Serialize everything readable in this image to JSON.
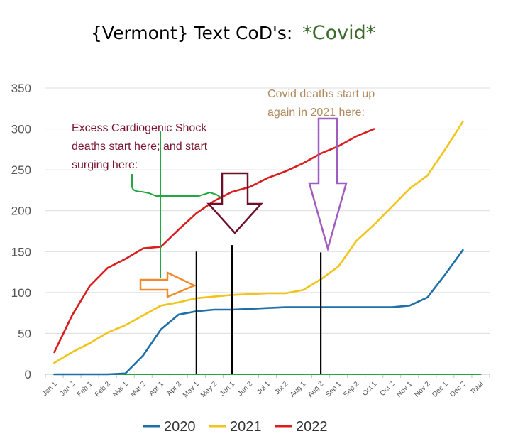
{
  "title": {
    "prefix": "{Vermont}  Text CoD's:",
    "accent": "*Covid*",
    "accent_color": "#3b6b2a"
  },
  "chart_data": {
    "type": "line",
    "categories": [
      "Jan 1",
      "Jan 2",
      "Feb 1",
      "Feb 2",
      "Mar 1",
      "Mar 2",
      "Apr 1",
      "Apr 2",
      "May 1",
      "May 2",
      "Jun 1",
      "Jun 2",
      "Jul 1",
      "Jul 2",
      "Aug 1",
      "Aug 2",
      "Sep 1",
      "Sep 2",
      "Oct 1",
      "Oct 2",
      "Nov 1",
      "Nov 2",
      "Dec 1",
      "Dec 2",
      "Total"
    ],
    "ylim": [
      0,
      350
    ],
    "yticks": [
      0,
      50,
      100,
      150,
      200,
      250,
      300,
      350
    ],
    "grid": true,
    "legend_position": "bottom",
    "series": [
      {
        "name": "2020",
        "color": "#1f6fa8",
        "values": [
          0,
          0,
          0,
          0,
          1,
          23,
          55,
          73,
          77,
          79,
          79,
          80,
          81,
          82,
          82,
          82,
          82,
          82,
          82,
          82,
          84,
          94,
          122,
          152,
          null
        ]
      },
      {
        "name": "2021",
        "color": "#f2c318",
        "values": [
          14,
          27,
          38,
          51,
          60,
          72,
          84,
          88,
          93,
          95,
          97,
          98,
          99,
          99,
          103,
          116,
          132,
          163,
          183,
          205,
          227,
          243,
          275,
          309,
          null
        ]
      },
      {
        "name": "2022",
        "color": "#d81e1e",
        "values": [
          27,
          72,
          108,
          130,
          141,
          154,
          156,
          177,
          197,
          212,
          223,
          229,
          240,
          248,
          258,
          270,
          279,
          291,
          300,
          null,
          null,
          null,
          null,
          null,
          null
        ]
      },
      {
        "name": "",
        "color": "#22a840",
        "show_in_legend": false,
        "values": [
          0,
          0,
          0,
          0,
          0,
          0,
          0,
          0,
          0,
          0,
          0,
          0,
          0,
          0,
          0,
          0,
          0,
          0,
          0,
          0,
          0,
          0,
          0,
          0,
          0
        ]
      }
    ],
    "annotations": [
      {
        "lines": [
          "Excess Cardiogenic Shock",
          "deaths start here; and start",
          "surging here:"
        ],
        "color": "#7a1530"
      },
      {
        "lines": [
          "Covid deaths start up",
          "again in 2021 here:"
        ],
        "color": "#b08a5e"
      }
    ],
    "markers": [
      {
        "type": "vline",
        "at_index": 8.5,
        "y_top": 150,
        "color": "#000000"
      },
      {
        "type": "vline",
        "at_index": 10.5,
        "y_top": 158,
        "color": "#000000"
      },
      {
        "type": "vline",
        "at_index": 15.5,
        "y_top": 149,
        "color": "#000000"
      }
    ]
  }
}
